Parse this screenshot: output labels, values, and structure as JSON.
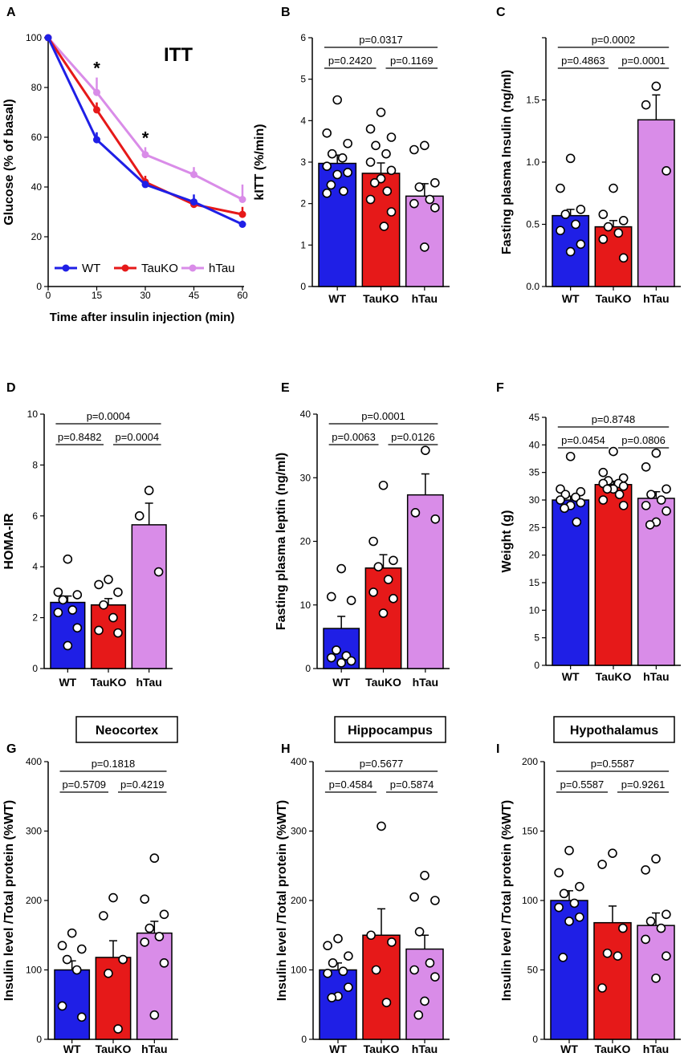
{
  "colors": {
    "WT": "#1f1fe6",
    "TauKO": "#e61919",
    "hTau": "#d98ce8"
  },
  "chart_data": [
    {
      "panel": "A",
      "type": "line",
      "title": "ITT",
      "xlabel": "Time after insulin injection (min)",
      "ylabel": "Glucose (% of basal)",
      "x": [
        0,
        15,
        30,
        45,
        60
      ],
      "xlim": [
        0,
        60
      ],
      "ylim": [
        0,
        100
      ],
      "xticks": [
        "0",
        "15",
        "30",
        "45",
        "60"
      ],
      "yticks": [
        "0",
        "20",
        "40",
        "60",
        "80",
        "100"
      ],
      "legend": [
        "WT",
        "TauKO",
        "hTau"
      ],
      "series": [
        {
          "name": "WT",
          "values": [
            100,
            59,
            41,
            34,
            25
          ],
          "errors": [
            0,
            3,
            1.5,
            3,
            1.5
          ]
        },
        {
          "name": "TauKO",
          "values": [
            100,
            71,
            42,
            33,
            29
          ],
          "errors": [
            0,
            3,
            2.5,
            1.5,
            3
          ]
        },
        {
          "name": "hTau",
          "values": [
            100,
            78,
            53,
            45,
            35
          ],
          "errors": [
            0,
            6,
            3,
            3,
            6
          ]
        }
      ],
      "annotations": [
        "*",
        "*"
      ],
      "annotation_x": [
        15,
        30
      ]
    },
    {
      "panel": "B",
      "type": "bar",
      "ylabel": "kITT (%/min)",
      "categories": [
        "WT",
        "TauKO",
        "hTau"
      ],
      "ylim": [
        0,
        6
      ],
      "yticks": [
        "0",
        "1",
        "2",
        "3",
        "4",
        "5",
        "6"
      ],
      "values": [
        2.97,
        2.73,
        2.18
      ],
      "errors": [
        0.2,
        0.25,
        0.3
      ],
      "points": [
        [
          4.5,
          3.7,
          3.45,
          3.2,
          3.1,
          2.9,
          2.75,
          2.7,
          2.45,
          2.3,
          2.25
        ],
        [
          4.2,
          3.8,
          3.6,
          3.4,
          3.2,
          3.0,
          2.8,
          2.6,
          2.5,
          2.3,
          2.1,
          1.8,
          1.45
        ],
        [
          3.4,
          3.3,
          2.5,
          2.4,
          2.1,
          2.0,
          1.9,
          0.95
        ]
      ],
      "comparisons": [
        {
          "a": 0,
          "b": 1,
          "p": "p=0.2420"
        },
        {
          "a": 1,
          "b": 2,
          "p": "p=0.1169"
        },
        {
          "a": 0,
          "b": 2,
          "p": "p=0.0317"
        }
      ]
    },
    {
      "panel": "C",
      "type": "bar",
      "ylabel": "Fasting plasma Insulin (ng/ml)",
      "categories": [
        "WT",
        "TauKO",
        "hTau"
      ],
      "ylim": [
        0,
        2.0
      ],
      "yticks": [
        "0.0",
        "0.5",
        "1.0",
        "1.5"
      ],
      "values": [
        0.57,
        0.48,
        1.34
      ],
      "errors": [
        0.05,
        0.05,
        0.2
      ],
      "points": [
        [
          1.03,
          0.79,
          0.62,
          0.58,
          0.5,
          0.45,
          0.34,
          0.28
        ],
        [
          0.79,
          0.58,
          0.53,
          0.48,
          0.43,
          0.38,
          0.23
        ],
        [
          1.61,
          1.46,
          0.93
        ]
      ],
      "comparisons": [
        {
          "a": 0,
          "b": 1,
          "p": "p=0.4863"
        },
        {
          "a": 1,
          "b": 2,
          "p": "p=0.0001"
        },
        {
          "a": 0,
          "b": 2,
          "p": "p=0.0002"
        }
      ]
    },
    {
      "panel": "D",
      "type": "bar",
      "ylabel": "HOMA-IR",
      "categories": [
        "WT",
        "TauKO",
        "hTau"
      ],
      "ylim": [
        0,
        10
      ],
      "yticks": [
        "0",
        "2",
        "4",
        "6",
        "8",
        "10"
      ],
      "values": [
        2.6,
        2.5,
        5.65
      ],
      "errors": [
        0.25,
        0.25,
        0.85
      ],
      "points": [
        [
          4.3,
          3.0,
          2.9,
          2.7,
          2.3,
          2.2,
          1.6,
          0.9
        ],
        [
          3.5,
          3.3,
          3.0,
          2.5,
          2.0,
          1.5,
          1.4
        ],
        [
          7.0,
          6.0,
          3.8
        ]
      ],
      "comparisons": [
        {
          "a": 0,
          "b": 1,
          "p": "p=0.8482"
        },
        {
          "a": 1,
          "b": 2,
          "p": "p=0.0004"
        },
        {
          "a": 0,
          "b": 2,
          "p": "p=0.0004"
        }
      ]
    },
    {
      "panel": "E",
      "type": "bar",
      "ylabel": "Fasting plasma leptin (ng/ml)",
      "categories": [
        "WT",
        "TauKO",
        "hTau"
      ],
      "ylim": [
        0,
        40
      ],
      "yticks": [
        "0",
        "10",
        "20",
        "30",
        "40"
      ],
      "values": [
        6.3,
        15.8,
        27.3
      ],
      "errors": [
        1.9,
        2.1,
        3.3
      ],
      "points": [
        [
          15.7,
          11.3,
          10.7,
          2.9,
          2.0,
          1.7,
          1.2,
          0.9
        ],
        [
          28.8,
          20.0,
          17.0,
          16.0,
          14.0,
          12.0,
          11.0,
          8.7
        ],
        [
          34.3,
          24.5,
          23.5
        ]
      ],
      "comparisons": [
        {
          "a": 0,
          "b": 1,
          "p": "p=0.0063"
        },
        {
          "a": 1,
          "b": 2,
          "p": "p=0.0126"
        },
        {
          "a": 0,
          "b": 2,
          "p": "p=0.0001"
        }
      ]
    },
    {
      "panel": "F",
      "type": "bar",
      "ylabel": "Weight (g)",
      "categories": [
        "WT",
        "TauKO",
        "hTau"
      ],
      "ylim": [
        0,
        45
      ],
      "yticks": [
        "0",
        "5",
        "10",
        "15",
        "20",
        "25",
        "30",
        "35",
        "40",
        "45"
      ],
      "values": [
        30.0,
        32.8,
        30.3
      ],
      "errors": [
        0.7,
        0.6,
        1.2
      ],
      "points": [
        [
          37.9,
          32.0,
          31.5,
          31.0,
          30.5,
          30.0,
          29.5,
          29.0,
          28.5,
          26.0
        ],
        [
          38.8,
          35.0,
          34.0,
          33.5,
          33.0,
          33.0,
          32.5,
          32.0,
          32.0,
          31.0,
          30.0,
          29.0
        ],
        [
          38.5,
          36.0,
          32.0,
          31.0,
          30.0,
          29.0,
          28.0,
          26.0,
          25.5
        ]
      ],
      "comparisons": [
        {
          "a": 0,
          "b": 1,
          "p": "p=0.0454"
        },
        {
          "a": 1,
          "b": 2,
          "p": "p=0.0806"
        },
        {
          "a": 0,
          "b": 2,
          "p": "p=0.8748"
        }
      ]
    },
    {
      "panel": "G",
      "type": "bar",
      "title": "Neocortex",
      "ylabel": "Insulin level /Total protein (%WT)",
      "categories": [
        "WT",
        "TauKO",
        "hTau"
      ],
      "ylim": [
        0,
        400
      ],
      "yticks": [
        "0",
        "100",
        "200",
        "300",
        "400"
      ],
      "values": [
        100,
        118,
        153
      ],
      "errors": [
        13,
        24,
        17
      ],
      "points": [
        [
          153,
          135,
          130,
          115,
          100,
          48,
          32
        ],
        [
          204,
          178,
          115,
          95,
          15
        ],
        [
          261,
          202,
          180,
          160,
          148,
          140,
          110,
          35
        ]
      ],
      "comparisons": [
        {
          "a": 0,
          "b": 1,
          "p": "p=0.5709"
        },
        {
          "a": 1,
          "b": 2,
          "p": "p=0.4219"
        },
        {
          "a": 0,
          "b": 2,
          "p": "p=0.1818"
        }
      ]
    },
    {
      "panel": "H",
      "type": "bar",
      "title": "Hippocampus",
      "ylabel": "Insulin level /Total protein (%WT)",
      "categories": [
        "WT",
        "TauKO",
        "hTau"
      ],
      "ylim": [
        0,
        400
      ],
      "yticks": [
        "0",
        "100",
        "200",
        "300",
        "400"
      ],
      "values": [
        100,
        150,
        130
      ],
      "errors": [
        10,
        38,
        20
      ],
      "points": [
        [
          145,
          135,
          120,
          110,
          98,
          95,
          75,
          62,
          60
        ],
        [
          307,
          150,
          140,
          100,
          53
        ],
        [
          236,
          205,
          200,
          155,
          110,
          100,
          90,
          55,
          35
        ]
      ],
      "comparisons": [
        {
          "a": 0,
          "b": 1,
          "p": "p=0.4584"
        },
        {
          "a": 1,
          "b": 2,
          "p": "p=0.5874"
        },
        {
          "a": 0,
          "b": 2,
          "p": "p=0.5677"
        }
      ]
    },
    {
      "panel": "I",
      "type": "bar",
      "title": "Hypothalamus",
      "ylabel": "Insulin level /Total protein (%WT)",
      "categories": [
        "WT",
        "TauKO",
        "hTau"
      ],
      "ylim": [
        0,
        200
      ],
      "yticks": [
        "0",
        "50",
        "100",
        "150",
        "200"
      ],
      "values": [
        100,
        84,
        82
      ],
      "errors": [
        7,
        12,
        9
      ],
      "points": [
        [
          136,
          120,
          110,
          105,
          98,
          95,
          88,
          85,
          59
        ],
        [
          134,
          126,
          80,
          62,
          60,
          37
        ],
        [
          130,
          122,
          90,
          85,
          80,
          72,
          60,
          44
        ]
      ],
      "comparisons": [
        {
          "a": 0,
          "b": 1,
          "p": "p=0.5587"
        },
        {
          "a": 1,
          "b": 2,
          "p": "p=0.9261"
        },
        {
          "a": 0,
          "b": 2,
          "p": "p=0.5587"
        }
      ]
    }
  ]
}
